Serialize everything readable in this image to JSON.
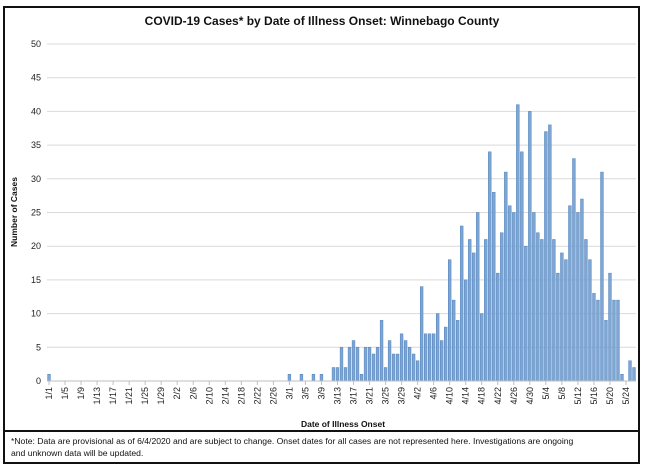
{
  "chart_data": {
    "type": "bar",
    "title": "COVID-19 Cases* by Date of Illness Onset: Winnebago County",
    "xlabel": "Date of Illness Onset",
    "ylabel": "Number of Cases",
    "ylim": [
      0,
      50
    ],
    "yticks": [
      0,
      5,
      10,
      15,
      20,
      25,
      30,
      35,
      40,
      45,
      50
    ],
    "grid": true,
    "bar_color": "#7ea6d3",
    "bar_edge_color": "#4f81bd",
    "x_start": "1/1",
    "x_end": "5/25",
    "xtick_labels": [
      "1/1",
      "1/5",
      "1/9",
      "1/13",
      "1/17",
      "1/21",
      "1/25",
      "1/29",
      "2/2",
      "2/6",
      "2/10",
      "2/14",
      "2/18",
      "2/22",
      "2/26",
      "3/1",
      "3/5",
      "3/9",
      "3/13",
      "3/17",
      "3/21",
      "3/25",
      "3/29",
      "4/2",
      "4/6",
      "4/10",
      "4/14",
      "4/18",
      "4/22",
      "4/26",
      "4/30",
      "5/4",
      "5/8",
      "5/12",
      "5/16",
      "5/20",
      "5/24"
    ],
    "values": [
      1,
      0,
      0,
      0,
      0,
      0,
      0,
      0,
      0,
      0,
      0,
      0,
      0,
      0,
      0,
      0,
      0,
      0,
      0,
      0,
      0,
      0,
      0,
      0,
      0,
      0,
      0,
      0,
      0,
      0,
      0,
      0,
      0,
      0,
      0,
      0,
      0,
      0,
      0,
      0,
      0,
      0,
      0,
      0,
      0,
      0,
      0,
      0,
      0,
      0,
      0,
      0,
      0,
      0,
      0,
      0,
      0,
      0,
      0,
      0,
      1,
      0,
      0,
      1,
      0,
      0,
      1,
      0,
      1,
      0,
      0,
      2,
      2,
      5,
      2,
      5,
      6,
      5,
      1,
      5,
      5,
      4,
      5,
      9,
      2,
      6,
      4,
      4,
      7,
      6,
      5,
      4,
      3,
      14,
      7,
      7,
      7,
      10,
      6,
      8,
      18,
      12,
      9,
      23,
      15,
      21,
      19,
      25,
      10,
      21,
      34,
      28,
      16,
      22,
      31,
      26,
      25,
      41,
      34,
      20,
      40,
      25,
      22,
      21,
      37,
      38,
      21,
      16,
      19,
      18,
      26,
      33,
      25,
      27,
      21,
      18,
      13,
      12,
      31,
      9,
      16,
      12,
      12,
      1,
      0,
      3,
      2
    ]
  },
  "note": {
    "line1": "*Note: Data are provisional as of 6/4/2020 and are subject to change. Onset dates for all cases are not represented here. Investigations are ongoing",
    "line2": "and unknown data will be updated."
  }
}
